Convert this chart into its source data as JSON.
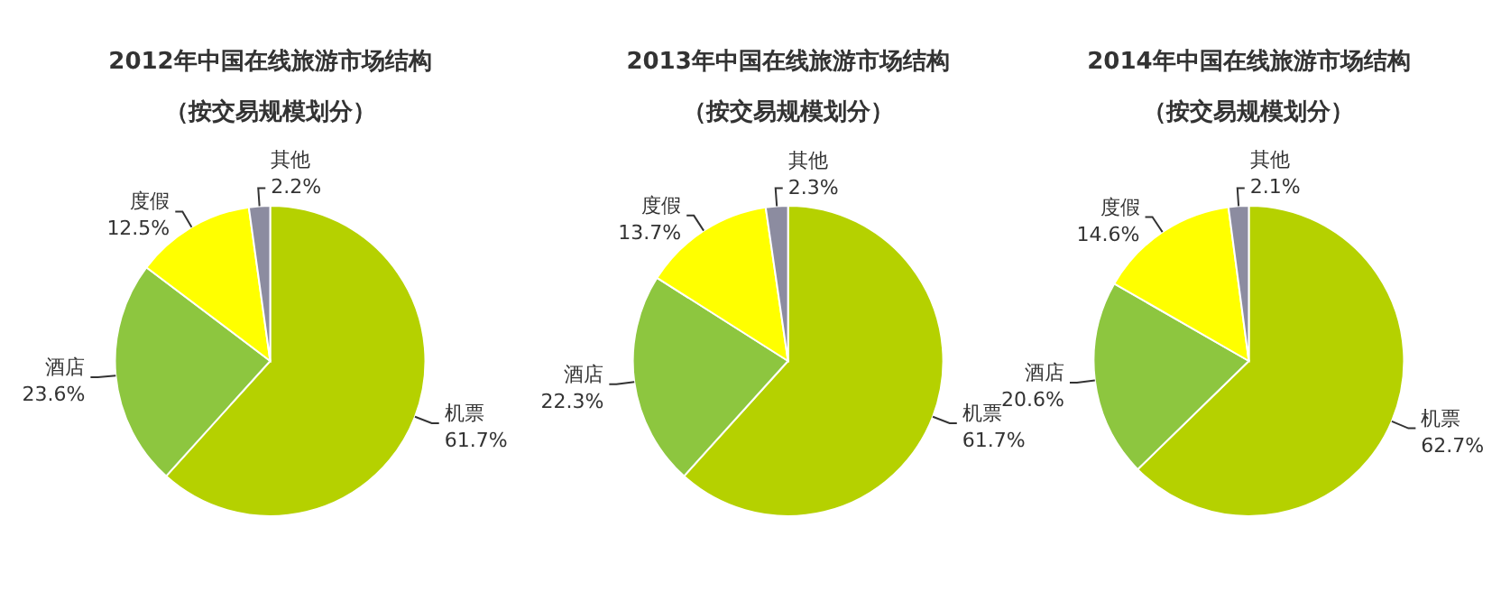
{
  "chart_data": [
    {
      "type": "pie",
      "title": "2012年中国在线旅游市场结构",
      "subtitle": "（按交易规模划分）",
      "categories": [
        "机票",
        "酒店",
        "度假",
        "其他"
      ],
      "values": [
        61.7,
        23.6,
        12.5,
        2.2
      ],
      "value_labels": [
        "61.7%",
        "23.6%",
        "12.5%",
        "2.2%"
      ],
      "colors": [
        "#b5d100",
        "#8dc63f",
        "#ffff00",
        "#8c8ca0"
      ]
    },
    {
      "type": "pie",
      "title": "2013年中国在线旅游市场结构",
      "subtitle": "（按交易规模划分）",
      "categories": [
        "机票",
        "酒店",
        "度假",
        "其他"
      ],
      "values": [
        61.7,
        22.3,
        13.7,
        2.3
      ],
      "value_labels": [
        "61.7%",
        "22.3%",
        "13.7%",
        "2.3%"
      ],
      "colors": [
        "#b5d100",
        "#8dc63f",
        "#ffff00",
        "#8c8ca0"
      ]
    },
    {
      "type": "pie",
      "title": "2014年中国在线旅游市场结构",
      "subtitle": "（按交易规模划分）",
      "categories": [
        "机票",
        "酒店",
        "度假",
        "其他"
      ],
      "values": [
        62.7,
        20.6,
        14.6,
        2.1
      ],
      "value_labels": [
        "62.7%",
        "20.6%",
        "14.6%",
        "2.1%"
      ],
      "colors": [
        "#b5d100",
        "#8dc63f",
        "#ffff00",
        "#8c8ca0"
      ]
    }
  ]
}
